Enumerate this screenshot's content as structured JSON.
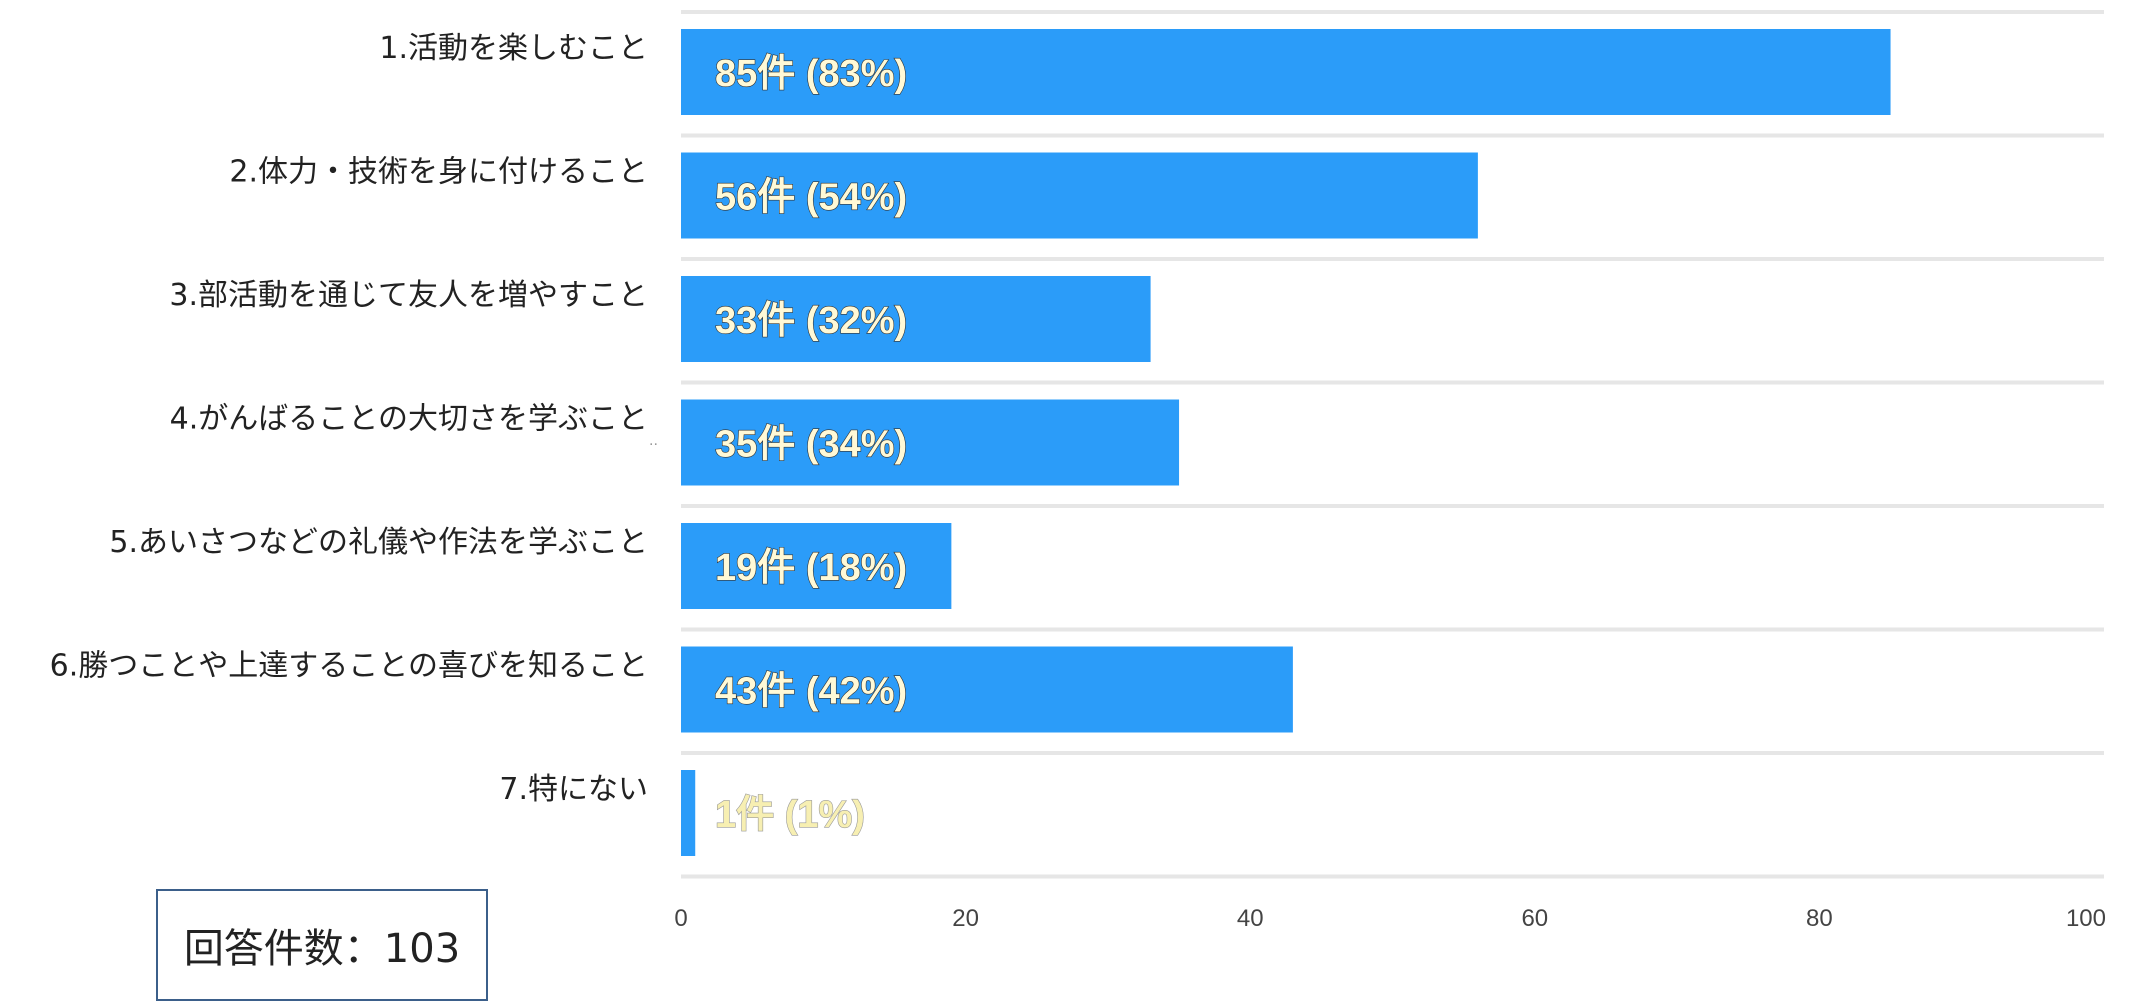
{
  "chart_data": {
    "type": "bar",
    "orientation": "horizontal",
    "categories": [
      "1.活動を楽しむこと",
      "2.体力・技術を身に付けること",
      "3.部活動を通じて友人を増やすこと",
      "4.がんばることの大切さを学ぶこと",
      "5.あいさつなどの礼儀や作法を学ぶこと",
      "6.勝つことや上達することの喜びを知ること",
      "7.特にない"
    ],
    "values": [
      85,
      56,
      33,
      35,
      19,
      43,
      1
    ],
    "data_labels": [
      "85件 (83%)",
      "56件 (54%)",
      "33件 (32%)",
      "35件 (34%)",
      "19件 (18%)",
      "43件 (42%)",
      "1件 (1%)"
    ],
    "xlim": [
      0,
      100
    ],
    "x_ticks": [
      "0",
      "20",
      "40",
      "60",
      "80",
      "100"
    ],
    "title": "",
    "xlabel": "",
    "ylabel": "",
    "grid": true,
    "colors": {
      "bar": "#2b9cf9",
      "grid": "#e6e6e6"
    }
  },
  "respondents": {
    "label": "回答件数：103"
  }
}
